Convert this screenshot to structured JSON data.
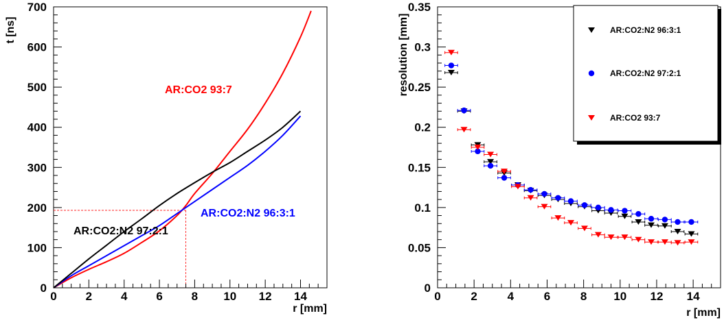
{
  "chart_data": [
    {
      "type": "line",
      "xlabel": "r [mm]",
      "ylabel": "t [ns]",
      "xlim": [
        0,
        15.5
      ],
      "ylim": [
        0,
        700
      ],
      "xticks": [
        0,
        2,
        4,
        6,
        8,
        10,
        12,
        14
      ],
      "yticks": [
        0,
        100,
        200,
        300,
        400,
        500,
        600,
        700
      ],
      "grid": false,
      "series": [
        {
          "name": "AR:CO2 93:7",
          "color": "#ff0000",
          "x": [
            0,
            1,
            2,
            3,
            4,
            5,
            6,
            7,
            7.5,
            8,
            9,
            10,
            11,
            12,
            13,
            14,
            14.6
          ],
          "y": [
            0,
            25,
            46,
            65,
            86,
            113,
            142,
            180,
            205,
            235,
            285,
            340,
            395,
            460,
            535,
            625,
            690
          ]
        },
        {
          "name": "AR:CO2:N2 96:3:1",
          "color": "#0000ff",
          "x": [
            0,
            1,
            2,
            3,
            4,
            5,
            6,
            7,
            8,
            9,
            10,
            11,
            12,
            13,
            14
          ],
          "y": [
            0,
            30,
            55,
            80,
            105,
            130,
            155,
            185,
            215,
            245,
            275,
            305,
            340,
            380,
            428
          ]
        },
        {
          "name": "AR:CO2:N2 97:2:1",
          "color": "#000000",
          "x": [
            0,
            1,
            2,
            3,
            4,
            5,
            6,
            7,
            8,
            9,
            10,
            11,
            12,
            13,
            14
          ],
          "y": [
            0,
            36,
            72,
            106,
            140,
            172,
            205,
            235,
            262,
            288,
            312,
            340,
            368,
            400,
            440
          ]
        }
      ],
      "guides": {
        "x": 7.5,
        "y": 193
      },
      "annotations": [
        "AR:CO2 93:7",
        "AR:CO2:N2 96:3:1",
        "AR:CO2:N2 97:2:1"
      ]
    },
    {
      "type": "scatter",
      "xlabel": "r  [mm]",
      "ylabel": "resolution  [mm]",
      "xlim": [
        0,
        15.5
      ],
      "ylim": [
        0,
        0.35
      ],
      "xticks": [
        0,
        2,
        4,
        6,
        8,
        10,
        12,
        14
      ],
      "yticks": [
        0,
        0.05,
        0.1,
        0.15,
        0.2,
        0.25,
        0.3,
        0.35
      ],
      "grid": false,
      "legend": "top-right",
      "series": [
        {
          "name": "AR:CO2:N2 96:3:1",
          "color": "#000000",
          "marker": "triangle-down",
          "x": [
            0.75,
            1.45,
            2.2,
            2.9,
            3.65,
            4.4,
            5.1,
            5.85,
            6.6,
            7.3,
            8.05,
            8.8,
            9.5,
            10.25,
            11.0,
            11.7,
            12.45,
            13.15,
            13.9
          ],
          "y": [
            0.268,
            0.22,
            0.178,
            0.157,
            0.143,
            0.128,
            0.121,
            0.115,
            0.11,
            0.105,
            0.101,
            0.096,
            0.093,
            0.089,
            0.082,
            0.078,
            0.077,
            0.07,
            0.067
          ]
        },
        {
          "name": "AR:CO2:N2 97:2:1",
          "color": "#0000ff",
          "marker": "circle",
          "x": [
            0.75,
            1.45,
            2.2,
            2.9,
            3.65,
            4.4,
            5.1,
            5.85,
            6.6,
            7.3,
            8.05,
            8.8,
            9.5,
            10.25,
            11.0,
            11.7,
            12.45,
            13.15,
            13.9
          ],
          "y": [
            0.277,
            0.221,
            0.17,
            0.152,
            0.137,
            0.128,
            0.122,
            0.117,
            0.112,
            0.108,
            0.103,
            0.1,
            0.097,
            0.096,
            0.092,
            0.086,
            0.085,
            0.082,
            0.082
          ]
        },
        {
          "name": "AR:CO2 93:7",
          "color": "#ff0000",
          "marker": "triangle-down",
          "x": [
            0.75,
            1.45,
            2.2,
            2.9,
            3.65,
            4.4,
            5.1,
            5.85,
            6.6,
            7.3,
            8.05,
            8.8,
            9.5,
            10.25,
            11.0,
            11.7,
            12.45,
            13.15,
            13.9
          ],
          "y": [
            0.293,
            0.197,
            0.175,
            0.166,
            0.145,
            0.126,
            0.112,
            0.101,
            0.087,
            0.081,
            0.074,
            0.066,
            0.063,
            0.063,
            0.06,
            0.057,
            0.057,
            0.056,
            0.057
          ]
        }
      ]
    }
  ]
}
